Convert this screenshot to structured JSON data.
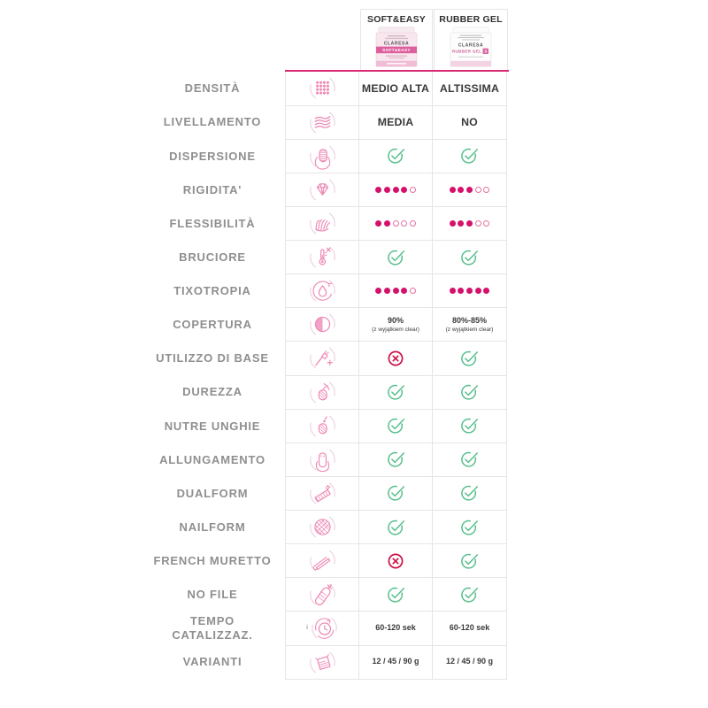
{
  "chart_data": {
    "type": "table",
    "columns": [
      "SOFT&EASY",
      "RUBBER GEL"
    ],
    "rows": [
      {
        "label": "DENSITÀ",
        "icon": "density-dots-icon",
        "col1": {
          "type": "text",
          "value": "MEDIO ALTA"
        },
        "col2": {
          "type": "text",
          "value": "ALTISSIMA"
        }
      },
      {
        "label": "LIVELLAMENTO",
        "icon": "leveling-layers-icon",
        "col1": {
          "type": "text",
          "value": "MEDIA"
        },
        "col2": {
          "type": "text",
          "value": "NO"
        }
      },
      {
        "label": "DISPERSIONE",
        "icon": "dispersion-nail-icon",
        "col1": {
          "type": "check",
          "value": "yes"
        },
        "col2": {
          "type": "check",
          "value": "yes"
        }
      },
      {
        "label": "RIGIDITA'",
        "icon": "rigidity-diamond-icon",
        "col1": {
          "type": "dots",
          "filled": 4,
          "total": 5
        },
        "col2": {
          "type": "dots",
          "filled": 3,
          "total": 5
        }
      },
      {
        "label": "FLESSIBILITÀ",
        "icon": "flexibility-fan-icon",
        "col1": {
          "type": "dots",
          "filled": 2,
          "total": 5
        },
        "col2": {
          "type": "dots",
          "filled": 3,
          "total": 5
        }
      },
      {
        "label": "BRUCIORE",
        "icon": "burning-thermometer-icon",
        "col1": {
          "type": "check",
          "value": "yes"
        },
        "col2": {
          "type": "check",
          "value": "yes"
        }
      },
      {
        "label": "TIXOTROPIA",
        "icon": "tixotropy-drop-icon",
        "col1": {
          "type": "dots",
          "filled": 4,
          "total": 5
        },
        "col2": {
          "type": "dots",
          "filled": 5,
          "total": 5
        }
      },
      {
        "label": "COPERTURA",
        "icon": "coverage-halfmoon-icon",
        "col1": {
          "type": "small",
          "value": "90%",
          "note": "(z wyjątkiem clear)"
        },
        "col2": {
          "type": "small",
          "value": "80%-85%",
          "note": "(z wyjątkiem clear)"
        }
      },
      {
        "label": "UTILIZZO DI BASE",
        "icon": "base-brush-plus-icon",
        "col1": {
          "type": "cross",
          "value": "no"
        },
        "col2": {
          "type": "check",
          "value": "yes"
        }
      },
      {
        "label": "DUREZZA",
        "icon": "hardness-hammer-nail-icon",
        "col1": {
          "type": "check",
          "value": "yes"
        },
        "col2": {
          "type": "check",
          "value": "yes"
        }
      },
      {
        "label": "NUTRE UNGHIE",
        "icon": "nourish-nail-icon",
        "col1": {
          "type": "check",
          "value": "yes"
        },
        "col2": {
          "type": "check",
          "value": "yes"
        }
      },
      {
        "label": "ALLUNGAMENTO",
        "icon": "lengthening-nail-icon",
        "col1": {
          "type": "check",
          "value": "yes"
        },
        "col2": {
          "type": "check",
          "value": "yes"
        }
      },
      {
        "label": "DUALFORM",
        "icon": "dualform-icon",
        "col1": {
          "type": "check",
          "value": "yes"
        },
        "col2": {
          "type": "check",
          "value": "yes"
        }
      },
      {
        "label": "NAILFORM",
        "icon": "nailform-icon",
        "col1": {
          "type": "check",
          "value": "yes"
        },
        "col2": {
          "type": "check",
          "value": "yes"
        }
      },
      {
        "label": "FRENCH MURETTO",
        "icon": "french-nippers-icon",
        "col1": {
          "type": "cross",
          "value": "no"
        },
        "col2": {
          "type": "check",
          "value": "yes"
        }
      },
      {
        "label": "NO FILE",
        "icon": "no-file-icon",
        "col1": {
          "type": "check",
          "value": "yes"
        },
        "col2": {
          "type": "check",
          "value": "yes"
        }
      },
      {
        "label": "TEMPO\nCATALIZZAZ.",
        "icon": "catalyzation-clock-icon",
        "prefix": "i",
        "col1": {
          "type": "small",
          "value": "60-120 sek"
        },
        "col2": {
          "type": "small",
          "value": "60-120 sek"
        }
      },
      {
        "label": "VARIANTI",
        "icon": "variants-jar-icon",
        "col1": {
          "type": "small",
          "value": "12 / 45 / 90 g"
        },
        "col2": {
          "type": "small",
          "value": "12 / 45 / 90 g"
        }
      }
    ]
  },
  "header": {
    "jars": [
      {
        "brand": "CLARESA",
        "label": "SOFT&EASY"
      },
      {
        "brand": "CLARESA",
        "label": "RUBBER GEL",
        "badge": "3"
      }
    ]
  },
  "colors": {
    "accent_line": "#d62a72",
    "dot_filled": "#d4116b",
    "dot_empty_outline": "#e671a1",
    "check_green": "#57bf8c",
    "cross_red": "#ce1145",
    "icon_pink": "#ee8ab6",
    "label_gray": "#8f8f8f",
    "value_dark": "#3a3a3a"
  }
}
